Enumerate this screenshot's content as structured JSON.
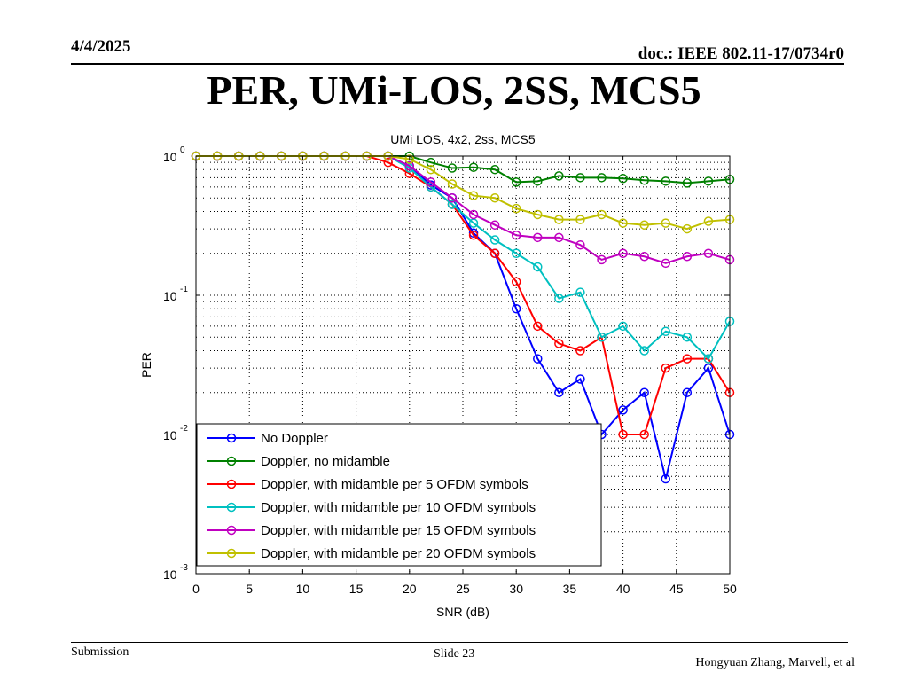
{
  "slide": {
    "date": "4/4/2025",
    "doc_id": "doc.: IEEE 802.11-17/0734r0",
    "title": "PER, UMi-LOS, 2SS, MCS5",
    "footer_left": "Submission",
    "footer_center": "Slide 23",
    "footer_right": "Hongyuan Zhang, Marvell, et al"
  },
  "chart_data": {
    "type": "line",
    "title": "UMi LOS, 4x2, 2ss, MCS5",
    "xlabel": "SNR (dB)",
    "ylabel": "PER",
    "xlim": [
      0,
      50
    ],
    "ylim": [
      0.001,
      1
    ],
    "yscale": "log",
    "xticks": [
      0,
      5,
      10,
      15,
      20,
      25,
      30,
      35,
      40,
      45,
      50
    ],
    "yticks": [
      {
        "value": 1,
        "base": "10",
        "exp": "0"
      },
      {
        "value": 0.1,
        "base": "10",
        "exp": "-1"
      },
      {
        "value": 0.01,
        "base": "10",
        "exp": "-2"
      },
      {
        "value": 0.001,
        "base": "10",
        "exp": "-3"
      }
    ],
    "grid": true,
    "legend_position": "bottom-left",
    "marker": "circle",
    "x": [
      0,
      2,
      4,
      6,
      8,
      10,
      12,
      14,
      16,
      18,
      20,
      22,
      24,
      26,
      28,
      30,
      32,
      34,
      36,
      38,
      40,
      42,
      44,
      46,
      48,
      50
    ],
    "series": [
      {
        "name": "No Doppler",
        "color": "#0000ff",
        "values": [
          1,
          1,
          1,
          1,
          1,
          1,
          1,
          1,
          1,
          1,
          0.85,
          0.62,
          0.5,
          0.28,
          0.2,
          0.08,
          0.035,
          0.02,
          0.025,
          0.01,
          0.015,
          0.02,
          0.0048,
          0.02,
          0.03,
          0.01
        ]
      },
      {
        "name": "Doppler, no midamble",
        "color": "#008000",
        "values": [
          1,
          1,
          1,
          1,
          1,
          1,
          1,
          1,
          1,
          1,
          1,
          0.9,
          0.82,
          0.83,
          0.8,
          0.65,
          0.66,
          0.72,
          0.7,
          0.7,
          0.69,
          0.67,
          0.66,
          0.64,
          0.66,
          0.68
        ]
      },
      {
        "name": "Doppler, with midamble per 5 OFDM symbols",
        "color": "#ff0000",
        "values": [
          1,
          1,
          1,
          1,
          1,
          1,
          1,
          1,
          1,
          0.9,
          0.75,
          0.6,
          0.45,
          0.27,
          0.2,
          0.125,
          0.06,
          0.045,
          0.04,
          0.05,
          0.01,
          0.01,
          0.03,
          0.035,
          0.035,
          0.02
        ]
      },
      {
        "name": "Doppler, with midamble per 10 OFDM symbols",
        "color": "#00c0c0",
        "values": [
          1,
          1,
          1,
          1,
          1,
          1,
          1,
          1,
          1,
          1,
          0.82,
          0.6,
          0.45,
          0.33,
          0.25,
          0.2,
          0.16,
          0.095,
          0.105,
          0.05,
          0.06,
          0.04,
          0.055,
          0.05,
          0.035,
          0.065
        ]
      },
      {
        "name": "Doppler, with midamble per 15 OFDM symbols",
        "color": "#c000c0",
        "values": [
          1,
          1,
          1,
          1,
          1,
          1,
          1,
          1,
          1,
          1,
          0.85,
          0.65,
          0.5,
          0.38,
          0.32,
          0.27,
          0.26,
          0.26,
          0.23,
          0.18,
          0.2,
          0.19,
          0.17,
          0.19,
          0.2,
          0.18
        ]
      },
      {
        "name": "Doppler, with midamble per 20 OFDM symbols",
        "color": "#c0c000",
        "values": [
          1,
          1,
          1,
          1,
          1,
          1,
          1,
          1,
          1,
          1,
          0.95,
          0.8,
          0.63,
          0.52,
          0.5,
          0.42,
          0.38,
          0.35,
          0.35,
          0.38,
          0.33,
          0.32,
          0.33,
          0.3,
          0.34,
          0.35
        ]
      }
    ]
  }
}
